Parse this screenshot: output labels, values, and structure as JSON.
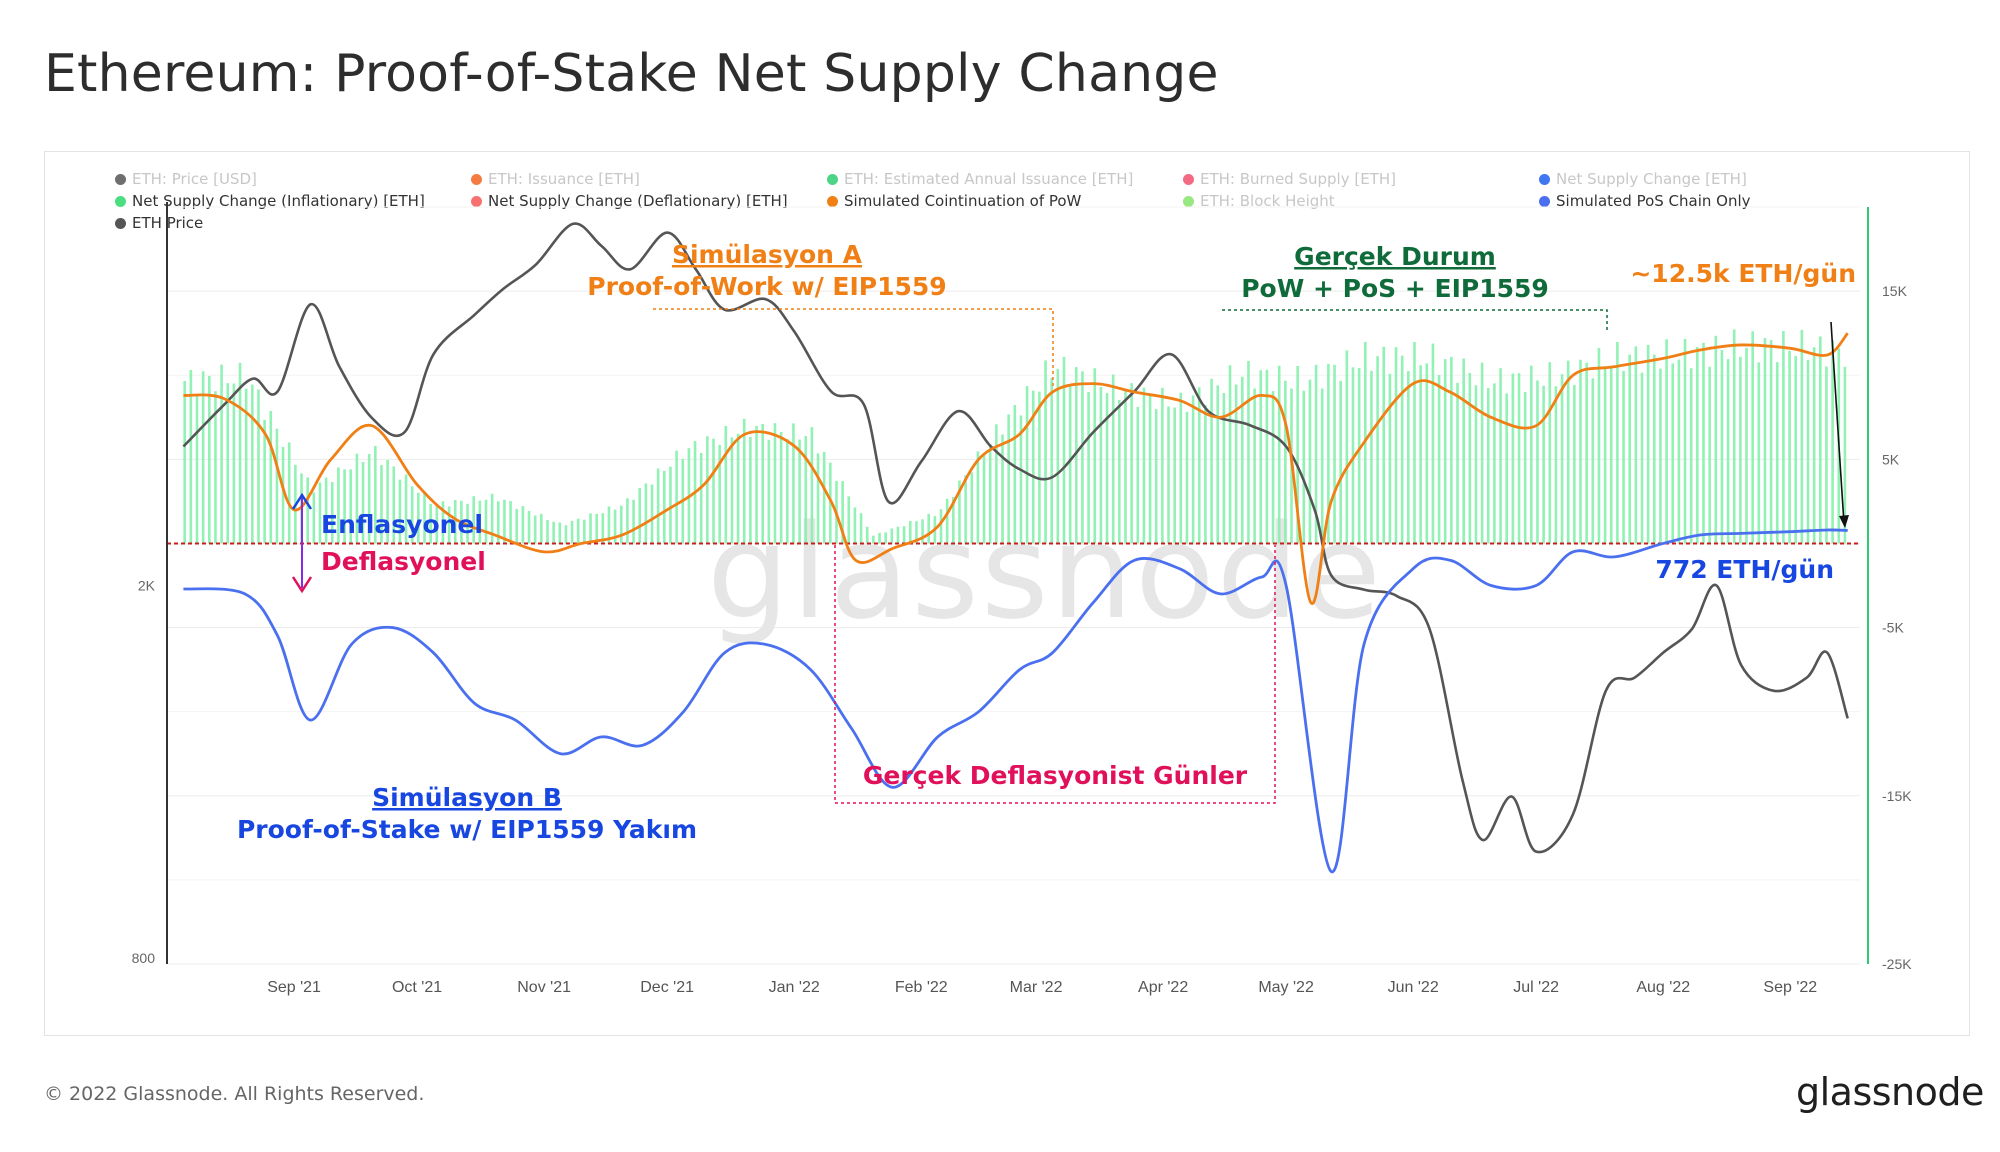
{
  "title": "Ethereum: Proof-of-Stake Net Supply Change",
  "footer": "© 2022 Glassnode. All Rights Reserved.",
  "brand": "glassnode",
  "watermark": "glassnode",
  "legend": [
    {
      "label": "ETH: Price [USD]",
      "color": "#555555",
      "active": false
    },
    {
      "label": "ETH: Issuance [ETH]",
      "color": "#f26522",
      "active": false
    },
    {
      "label": "ETH: Estimated Annual Issuance [ETH]",
      "color": "#2ecc71",
      "active": false
    },
    {
      "label": "ETH: Burned Supply [ETH]",
      "color": "#f0506e",
      "active": false
    },
    {
      "label": "Net Supply Change [ETH]",
      "color": "#1e5ef0",
      "active": false
    },
    {
      "label": "Net Supply Change (Inflationary) [ETH]",
      "color": "#4ade80",
      "active": true
    },
    {
      "label": "Net Supply Change (Deflationary) [ETH]",
      "color": "#f87171",
      "active": true
    },
    {
      "label": "Simulated Cointinuation of PoW",
      "color": "#f07f16",
      "active": true
    },
    {
      "label": "ETH: Block Height",
      "color": "#86e36a",
      "active": false
    },
    {
      "label": "Simulated PoS Chain Only",
      "color": "#4a70f0",
      "active": true
    },
    {
      "label": "ETH Price",
      "color": "#555555",
      "active": true
    }
  ],
  "annotations": {
    "sim_a_title": "Simülasyon A",
    "sim_a_sub": "Proof-of-Work w/ EIP1559",
    "real_title": "Gerçek Durum",
    "real_sub": "PoW + PoS + EIP1559",
    "pow_rate": "~12.5k ETH/gün",
    "pos_rate": "772 ETH/gün",
    "inflation": "Enflasyonel",
    "deflation": "Deflasyonel",
    "defl_days": "Gerçek Deflasyonist Günler",
    "sim_b_title": "Simülasyon B",
    "sim_b_sub": "Proof-of-Stake w/ EIP1559 Yakım"
  },
  "colors": {
    "pow": "#f07f16",
    "pos": "#4a70f0",
    "price": "#555555",
    "inflation_bars": "#86efac",
    "zero_line": "#c81e1e",
    "real_green": "#0f6b3a",
    "deflation_pink": "#e0105a",
    "blue_text": "#1746e0",
    "right_axis": "#2ecc71"
  },
  "chart_data": {
    "type": "line",
    "x_axis": {
      "ticks": [
        "Sep '21",
        "Oct '21",
        "Nov '21",
        "Dec '21",
        "Jan '22",
        "Feb '22",
        "Mar '22",
        "Apr '22",
        "May '22",
        "Jun '22",
        "Jul '22",
        "Aug '22",
        "Sep '22"
      ]
    },
    "y_left": {
      "scale": "log",
      "ticks": [
        "2K",
        "800"
      ],
      "range": [
        800,
        5000
      ]
    },
    "y_right": {
      "ticks": [
        "15K",
        "5K",
        "-5K",
        "-15K",
        "-25K"
      ],
      "range": [
        -25000,
        20000
      ]
    },
    "series": [
      {
        "name": "Net Supply Change (Inflationary) [ETH]",
        "type": "bar",
        "axis": "right",
        "dates": [
          "2021-08-05",
          "2021-08-20",
          "2021-09-05",
          "2021-09-20",
          "2021-10-05",
          "2021-10-20",
          "2021-11-05",
          "2021-11-20",
          "2021-12-05",
          "2021-12-20",
          "2022-01-05",
          "2022-01-20",
          "2022-02-05",
          "2022-02-20",
          "2022-03-05",
          "2022-03-20",
          "2022-04-05",
          "2022-04-20",
          "2022-05-05",
          "2022-05-20",
          "2022-06-05",
          "2022-06-20",
          "2022-07-05",
          "2022-07-20",
          "2022-08-05",
          "2022-08-20",
          "2022-09-05",
          "2022-09-15"
        ],
        "values": [
          10500,
          10800,
          3500,
          6000,
          2500,
          3000,
          1200,
          2500,
          6000,
          7500,
          7000,
          500,
          2000,
          7500,
          11500,
          10000,
          9000,
          11000,
          10500,
          12000,
          12000,
          10500,
          10800,
          12000,
          12200,
          12800,
          12700,
          12300
        ]
      },
      {
        "name": "Simulated Cointinuation of PoW",
        "type": "line",
        "axis": "right",
        "dates": [
          "2021-08-05",
          "2021-08-15",
          "2021-08-25",
          "2021-09-01",
          "2021-09-10",
          "2021-09-20",
          "2021-10-01",
          "2021-10-10",
          "2021-10-20",
          "2021-11-01",
          "2021-11-10",
          "2021-11-20",
          "2021-12-01",
          "2021-12-10",
          "2021-12-20",
          "2022-01-01",
          "2022-01-10",
          "2022-01-16",
          "2022-01-25",
          "2022-02-05",
          "2022-02-15",
          "2022-02-25",
          "2022-03-05",
          "2022-03-15",
          "2022-03-25",
          "2022-04-05",
          "2022-04-15",
          "2022-04-25",
          "2022-05-01",
          "2022-05-07",
          "2022-05-12",
          "2022-05-20",
          "2022-06-01",
          "2022-06-10",
          "2022-06-20",
          "2022-07-01",
          "2022-07-10",
          "2022-07-20",
          "2022-08-01",
          "2022-08-10",
          "2022-08-20",
          "2022-09-01",
          "2022-09-10",
          "2022-09-15"
        ],
        "values": [
          8800,
          8600,
          6500,
          2000,
          5000,
          7000,
          3500,
          1500,
          500,
          -500,
          0,
          500,
          2000,
          3500,
          6500,
          5800,
          2500,
          -1000,
          -300,
          1000,
          5000,
          6500,
          9000,
          9500,
          9000,
          8500,
          7500,
          8800,
          7000,
          -3500,
          2500,
          6000,
          9500,
          9000,
          7500,
          7000,
          10000,
          10500,
          11000,
          11500,
          11800,
          11600,
          11200,
          12500
        ]
      },
      {
        "name": "Simulated PoS Chain Only",
        "type": "line",
        "axis": "right",
        "dates": [
          "2021-08-05",
          "2021-08-20",
          "2021-08-28",
          "2021-09-05",
          "2021-09-15",
          "2021-09-25",
          "2021-10-05",
          "2021-10-15",
          "2021-10-25",
          "2021-11-05",
          "2021-11-15",
          "2021-11-25",
          "2021-12-05",
          "2021-12-15",
          "2021-12-25",
          "2022-01-05",
          "2022-01-15",
          "2022-01-25",
          "2022-02-05",
          "2022-02-15",
          "2022-02-25",
          "2022-03-05",
          "2022-03-15",
          "2022-03-25",
          "2022-04-05",
          "2022-04-15",
          "2022-04-25",
          "2022-05-01",
          "2022-05-12",
          "2022-05-20",
          "2022-06-01",
          "2022-06-10",
          "2022-06-20",
          "2022-07-01",
          "2022-07-10",
          "2022-07-20",
          "2022-08-01",
          "2022-08-10",
          "2022-08-20",
          "2022-09-01",
          "2022-09-10",
          "2022-09-15"
        ],
        "values": [
          -2700,
          -3000,
          -5500,
          -10500,
          -6000,
          -5000,
          -6500,
          -9500,
          -10500,
          -12500,
          -11500,
          -12000,
          -10000,
          -6500,
          -6000,
          -7500,
          -11000,
          -14500,
          -11500,
          -10000,
          -7500,
          -6500,
          -3500,
          -1000,
          -1500,
          -3000,
          -2000,
          -2500,
          -19500,
          -6000,
          -1500,
          -1000,
          -2500,
          -2500,
          -500,
          -800,
          0,
          500,
          600,
          700,
          800,
          772
        ]
      },
      {
        "name": "ETH Price",
        "type": "line",
        "axis": "left",
        "dates": [
          "2021-08-05",
          "2021-08-15",
          "2021-08-22",
          "2021-08-28",
          "2021-09-05",
          "2021-09-12",
          "2021-09-20",
          "2021-09-28",
          "2021-10-05",
          "2021-10-15",
          "2021-10-22",
          "2021-10-30",
          "2021-11-08",
          "2021-11-15",
          "2021-11-22",
          "2021-12-01",
          "2021-12-08",
          "2021-12-15",
          "2021-12-25",
          "2022-01-01",
          "2022-01-10",
          "2022-01-18",
          "2022-01-24",
          "2022-02-01",
          "2022-02-10",
          "2022-02-18",
          "2022-02-25",
          "2022-03-05",
          "2022-03-15",
          "2022-03-25",
          "2022-04-03",
          "2022-04-12",
          "2022-04-22",
          "2022-05-01",
          "2022-05-08",
          "2022-05-12",
          "2022-05-20",
          "2022-05-28",
          "2022-06-05",
          "2022-06-13",
          "2022-06-18",
          "2022-06-25",
          "2022-07-01",
          "2022-07-10",
          "2022-07-18",
          "2022-07-25",
          "2022-08-01",
          "2022-08-08",
          "2022-08-14",
          "2022-08-20",
          "2022-08-28",
          "2022-09-05",
          "2022-09-10",
          "2022-09-15"
        ],
        "values": [
          2800,
          3100,
          3300,
          3200,
          3950,
          3400,
          3000,
          2900,
          3500,
          3850,
          4100,
          4350,
          4800,
          4550,
          4300,
          4700,
          4300,
          3900,
          4000,
          3700,
          3200,
          3100,
          2450,
          2700,
          3050,
          2800,
          2650,
          2600,
          2900,
          3200,
          3500,
          3050,
          2950,
          2800,
          2400,
          2050,
          1980,
          1950,
          1800,
          1250,
          1080,
          1200,
          1050,
          1150,
          1550,
          1600,
          1700,
          1800,
          2000,
          1650,
          1550,
          1600,
          1700,
          1450
        ]
      }
    ]
  }
}
